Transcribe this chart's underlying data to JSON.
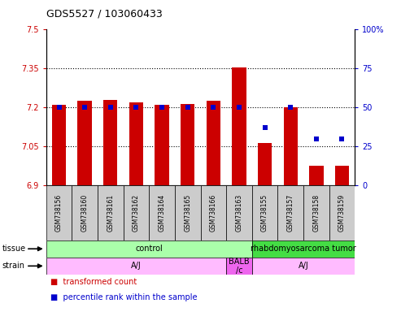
{
  "title": "GDS5527 / 103060433",
  "samples": [
    "GSM738156",
    "GSM738160",
    "GSM738161",
    "GSM738162",
    "GSM738164",
    "GSM738165",
    "GSM738166",
    "GSM738163",
    "GSM738155",
    "GSM738157",
    "GSM738158",
    "GSM738159"
  ],
  "bar_values": [
    7.21,
    7.225,
    7.23,
    7.22,
    7.21,
    7.215,
    7.225,
    7.355,
    7.065,
    7.2,
    6.975,
    6.975
  ],
  "bar_base": 6.9,
  "percentile_values": [
    50,
    50,
    50,
    50,
    50,
    50,
    50,
    50,
    37,
    50,
    30,
    30
  ],
  "ylim_left": [
    6.9,
    7.5
  ],
  "ylim_right": [
    0,
    100
  ],
  "yticks_left": [
    6.9,
    7.05,
    7.2,
    7.35,
    7.5
  ],
  "yticks_right": [
    0,
    25,
    50,
    75,
    100
  ],
  "bar_color": "#cc0000",
  "dot_color": "#0000cc",
  "dotted_lines": [
    7.05,
    7.2,
    7.35
  ],
  "tissue_groups": [
    {
      "label": "control",
      "start": 0,
      "end": 8,
      "color": "#aaffaa"
    },
    {
      "label": "rhabdomyosarcoma tumor",
      "start": 8,
      "end": 12,
      "color": "#44dd44"
    }
  ],
  "strain_groups": [
    {
      "label": "A/J",
      "start": 0,
      "end": 7,
      "color": "#ffbbff"
    },
    {
      "label": "BALB\n/c",
      "start": 7,
      "end": 8,
      "color": "#ee66ee"
    },
    {
      "label": "A/J",
      "start": 8,
      "end": 12,
      "color": "#ffbbff"
    }
  ],
  "legend_red_label": "transformed count",
  "legend_blue_label": "percentile rank within the sample",
  "legend_red_color": "#cc0000",
  "legend_blue_color": "#0000cc",
  "background_color": "#ffffff",
  "sample_box_color": "#cccccc",
  "title_fontsize": 9,
  "axis_label_fontsize": 7,
  "sample_fontsize": 5.5,
  "row_label_fontsize": 7,
  "legend_fontsize": 7
}
